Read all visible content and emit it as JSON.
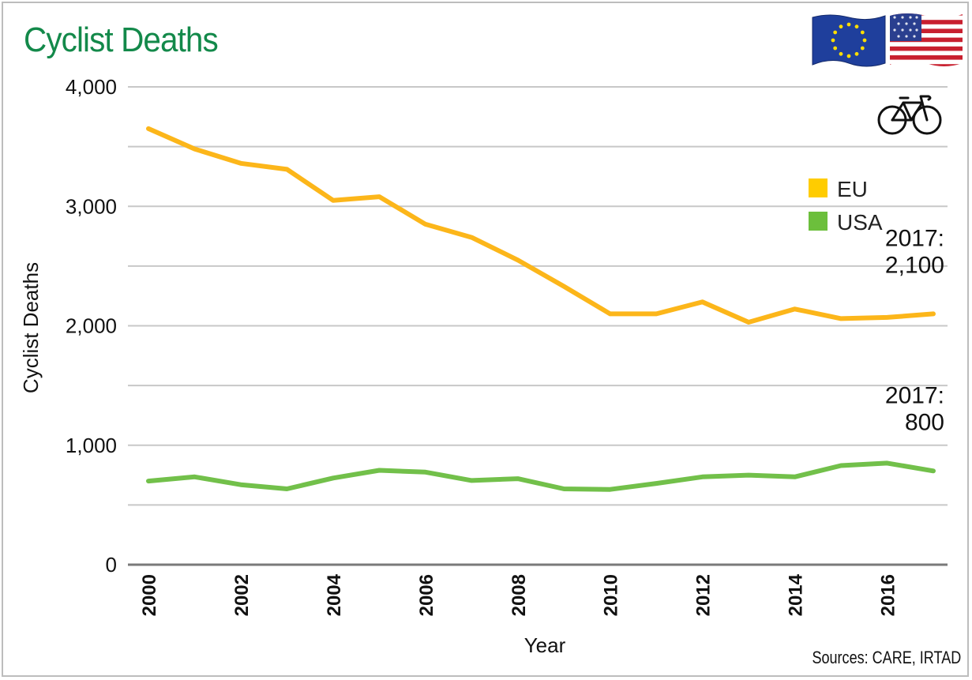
{
  "chart_data": {
    "type": "line",
    "title": "Cyclist Deaths",
    "xlabel": "Year",
    "ylabel": "Cyclist Deaths",
    "x": [
      2000,
      2001,
      2002,
      2003,
      2004,
      2005,
      2006,
      2007,
      2008,
      2009,
      2010,
      2011,
      2012,
      2013,
      2014,
      2015,
      2016,
      2017
    ],
    "x_tick_labels": [
      "2000",
      "2002",
      "2004",
      "2006",
      "2008",
      "2010",
      "2012",
      "2014",
      "2016"
    ],
    "y_ticks": [
      0,
      1000,
      2000,
      3000,
      4000
    ],
    "y_tick_labels": [
      "0",
      "1,000",
      "2,000",
      "3,000",
      "4,000"
    ],
    "ylim": [
      0,
      4000
    ],
    "grid": true,
    "series": [
      {
        "name": "EU",
        "color": "#fcb61a",
        "values": [
          3650,
          3480,
          3360,
          3310,
          3050,
          3080,
          2850,
          2740,
          2550,
          2330,
          2100,
          2100,
          2200,
          2030,
          2140,
          2060,
          2070,
          2100
        ]
      },
      {
        "name": "USA",
        "color": "#72c04a",
        "values": [
          700,
          735,
          670,
          635,
          725,
          790,
          775,
          705,
          720,
          635,
          630,
          680,
          735,
          750,
          735,
          830,
          850,
          785
        ]
      }
    ],
    "legend_colors": {
      "EU": "#ffcc00",
      "USA": "#6cbf3c"
    },
    "legend_position": "right",
    "annotations": [
      {
        "series": "EU",
        "line1": "2017:",
        "line2": "2,100"
      },
      {
        "series": "USA",
        "line1": "2017:",
        "line2": "800"
      }
    ],
    "source": "Sources: CARE, IRTAD"
  },
  "icons": [
    "eu-flag-icon",
    "us-flag-icon",
    "bicycle-icon"
  ]
}
